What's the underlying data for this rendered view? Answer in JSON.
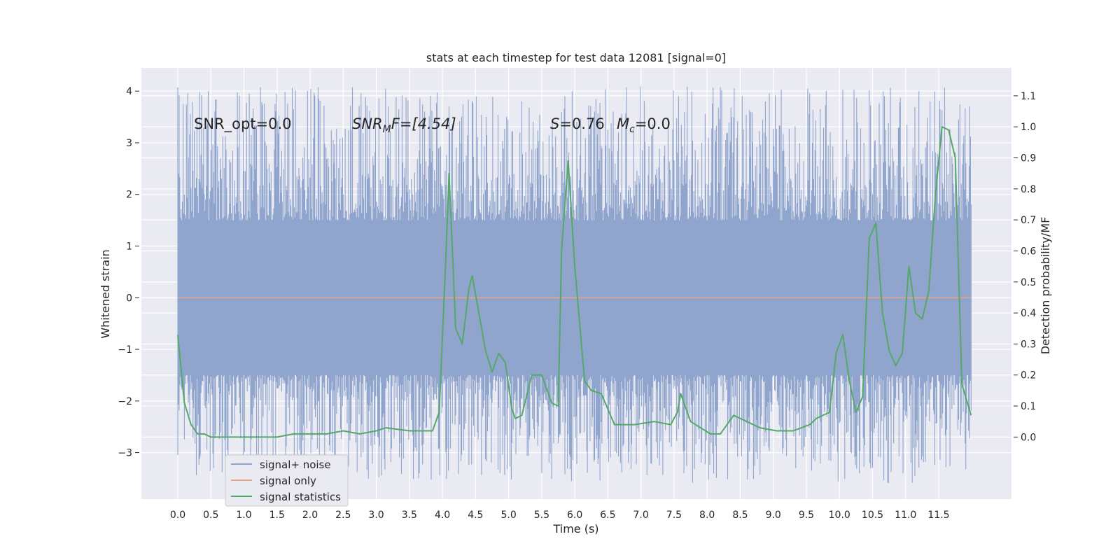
{
  "chart_data": {
    "type": "line",
    "title": "stats at each timestep for test data 12081 [signal=0]",
    "xlabel": "Time (s)",
    "ylabel_left": "Whitened strain",
    "ylabel_right": "Detection probability/MF",
    "xlim": [
      -0.55,
      12.6
    ],
    "ylim_left": [
      -3.9,
      4.45
    ],
    "ylim_right": [
      -0.2,
      1.19
    ],
    "x_ticks": [
      0.0,
      0.5,
      1.0,
      1.5,
      2.0,
      2.5,
      3.0,
      3.5,
      4.0,
      4.5,
      5.0,
      5.5,
      6.0,
      6.5,
      7.0,
      7.5,
      8.0,
      8.5,
      9.0,
      9.5,
      10.0,
      10.5,
      11.0,
      11.5
    ],
    "x_tick_labels": [
      "0.0",
      "0.5",
      "1.0",
      "1.5",
      "2.0",
      "2.5",
      "3.0",
      "3.5",
      "4.0",
      "4.5",
      "5.0",
      "5.5",
      "6.0",
      "6.5",
      "7.0",
      "7.5",
      "8.0",
      "8.5",
      "9.0",
      "9.5",
      "10.0",
      "10.5",
      "11.0",
      "11.5"
    ],
    "y_left_ticks": [
      -3,
      -2,
      -1,
      0,
      1,
      2,
      3,
      4
    ],
    "y_left_tick_labels": [
      "−3",
      "−2",
      "−1",
      "0",
      "1",
      "2",
      "3",
      "4"
    ],
    "y_right_ticks": [
      0.0,
      0.1,
      0.2,
      0.3,
      0.4,
      0.5,
      0.6,
      0.7,
      0.8,
      0.9,
      1.0,
      1.1
    ],
    "y_right_tick_labels": [
      "0.0",
      "0.1",
      "0.2",
      "0.3",
      "0.4",
      "0.5",
      "0.6",
      "0.7",
      "0.8",
      "0.9",
      "1.0",
      "1.1"
    ],
    "grid": true,
    "legend_position": "lower-left",
    "annotations": {
      "snr_opt": "SNR_opt=0.0",
      "snr_mf_name": "SNR",
      "snr_mf_sub": "M",
      "snr_mf_rest": "F=[4.54]",
      "s_name": "S",
      "s_value": "=0.76",
      "mc_name": "M",
      "mc_sub": "c",
      "mc_value": "=0.0"
    },
    "series": [
      {
        "name": "signal+ noise",
        "color": "#8fa5cd",
        "axis": "left",
        "x_range": [
          0.0,
          11.99
        ],
        "approx_amplitude": [
          -3.6,
          4.1
        ]
      },
      {
        "name": "signal only",
        "color": "#e8a486",
        "axis": "left",
        "x": [
          0.0,
          11.99
        ],
        "y": [
          0.0,
          0.0
        ]
      },
      {
        "name": "signal statistics",
        "color": "#55a868",
        "axis": "right",
        "x": [
          0.0,
          0.1,
          0.2,
          0.3,
          0.4,
          0.5,
          0.75,
          1.0,
          1.25,
          1.5,
          1.75,
          2.0,
          2.25,
          2.5,
          2.75,
          3.0,
          3.15,
          3.5,
          3.85,
          3.95,
          4.05,
          4.1,
          4.2,
          4.3,
          4.4,
          4.45,
          4.55,
          4.65,
          4.75,
          4.85,
          4.95,
          5.05,
          5.1,
          5.2,
          5.35,
          5.5,
          5.65,
          5.75,
          5.8,
          5.9,
          6.0,
          6.1,
          6.15,
          6.25,
          6.4,
          6.6,
          6.9,
          7.2,
          7.45,
          7.55,
          7.6,
          7.75,
          8.05,
          8.2,
          8.4,
          8.6,
          8.8,
          9.05,
          9.3,
          9.55,
          9.65,
          9.85,
          9.95,
          10.05,
          10.15,
          10.25,
          10.35,
          10.45,
          10.55,
          10.65,
          10.75,
          10.85,
          10.95,
          11.05,
          11.15,
          11.25,
          11.35,
          11.45,
          11.55,
          11.65,
          11.75,
          11.85,
          11.99
        ],
        "y": [
          0.33,
          0.11,
          0.04,
          0.01,
          0.01,
          0.0,
          0.0,
          0.0,
          0.0,
          0.0,
          0.01,
          0.01,
          0.01,
          0.02,
          0.01,
          0.02,
          0.03,
          0.02,
          0.02,
          0.08,
          0.57,
          0.85,
          0.35,
          0.3,
          0.48,
          0.52,
          0.4,
          0.28,
          0.21,
          0.27,
          0.24,
          0.09,
          0.06,
          0.07,
          0.2,
          0.2,
          0.11,
          0.1,
          0.6,
          0.89,
          0.55,
          0.3,
          0.18,
          0.15,
          0.14,
          0.04,
          0.04,
          0.05,
          0.04,
          0.08,
          0.14,
          0.05,
          0.01,
          0.01,
          0.07,
          0.05,
          0.03,
          0.02,
          0.02,
          0.04,
          0.06,
          0.08,
          0.27,
          0.33,
          0.18,
          0.08,
          0.13,
          0.64,
          0.69,
          0.4,
          0.28,
          0.23,
          0.27,
          0.55,
          0.4,
          0.38,
          0.47,
          0.78,
          1.0,
          0.99,
          0.9,
          0.17,
          0.07
        ]
      }
    ]
  }
}
